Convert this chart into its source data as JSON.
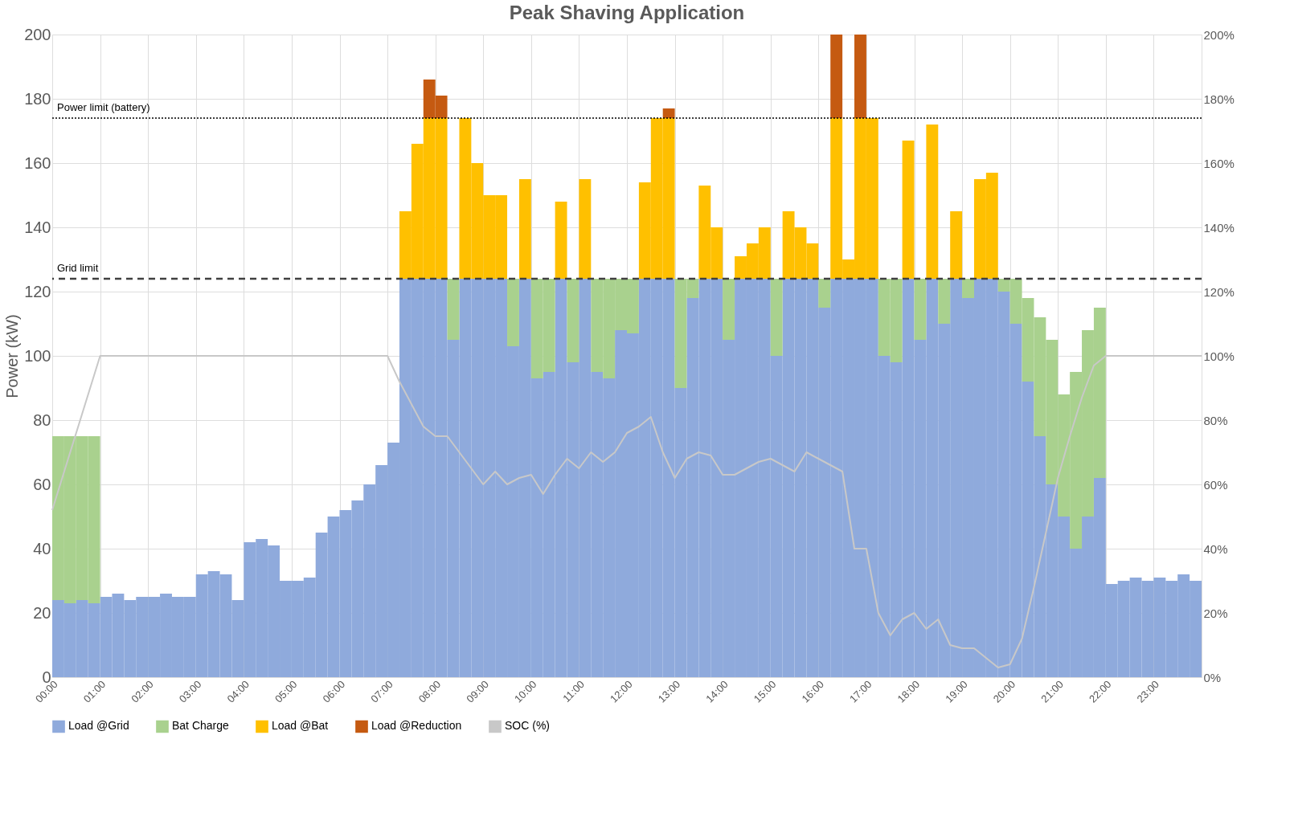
{
  "chart_data": {
    "type": "bar",
    "title": "Peak Shaving Application",
    "ylabel": "Power (kW)",
    "stacked": true,
    "grid": true,
    "legend": "bottom",
    "x": [
      0.125,
      0.375,
      0.625,
      0.875,
      1.125,
      1.375,
      1.625,
      1.875,
      2.125,
      2.375,
      2.625,
      2.875,
      3.125,
      3.375,
      3.625,
      3.875,
      4.125,
      4.375,
      4.625,
      4.875,
      5.125,
      5.375,
      5.625,
      5.875,
      6.125,
      6.375,
      6.625,
      6.875,
      7.125,
      7.375,
      7.625,
      7.875,
      8.125,
      8.375,
      8.625,
      8.875,
      9.125,
      9.375,
      9.625,
      9.875,
      10.125,
      10.375,
      10.625,
      10.875,
      11.125,
      11.375,
      11.625,
      11.875,
      12.125,
      12.375,
      12.625,
      12.875,
      13.125,
      13.375,
      13.625,
      13.875,
      14.125,
      14.375,
      14.625,
      14.875,
      15.125,
      15.375,
      15.625,
      15.875,
      16.125,
      16.375,
      16.625,
      16.875,
      17.125,
      17.375,
      17.625,
      17.875,
      18.125,
      18.375,
      18.625,
      18.875,
      19.125,
      19.375,
      19.625,
      19.875,
      20.125,
      20.375,
      20.625,
      20.875,
      21.125,
      21.375,
      21.625,
      21.875,
      22.125,
      22.375,
      22.625,
      22.875,
      23.125,
      23.375,
      23.625,
      23.875
    ],
    "xlim": [
      0,
      24
    ],
    "xticks": [
      {
        "value": 0,
        "label": "00:00"
      },
      {
        "value": 1,
        "label": "01:00"
      },
      {
        "value": 2,
        "label": "02:00"
      },
      {
        "value": 3,
        "label": "03:00"
      },
      {
        "value": 4,
        "label": "04:00"
      },
      {
        "value": 5,
        "label": "05:00"
      },
      {
        "value": 6,
        "label": "06:00"
      },
      {
        "value": 7,
        "label": "07:00"
      },
      {
        "value": 8,
        "label": "08:00"
      },
      {
        "value": 9,
        "label": "09:00"
      },
      {
        "value": 10,
        "label": "10:00"
      },
      {
        "value": 11,
        "label": "11:00"
      },
      {
        "value": 12,
        "label": "12:00"
      },
      {
        "value": 13,
        "label": "13:00"
      },
      {
        "value": 14,
        "label": "14:00"
      },
      {
        "value": 15,
        "label": "15:00"
      },
      {
        "value": 16,
        "label": "16:00"
      },
      {
        "value": 17,
        "label": "17:00"
      },
      {
        "value": 18,
        "label": "18:00"
      },
      {
        "value": 19,
        "label": "19:00"
      },
      {
        "value": 20,
        "label": "20:00"
      },
      {
        "value": 21,
        "label": "21:00"
      },
      {
        "value": 22,
        "label": "22:00"
      },
      {
        "value": 23,
        "label": "23:00"
      },
      {
        "value": 24,
        "label": null
      }
    ],
    "ylim": [
      0,
      200
    ],
    "yticks": [
      0,
      20,
      40,
      60,
      80,
      100,
      120,
      140,
      160,
      180,
      200
    ],
    "y2lim": [
      0,
      200
    ],
    "y2ticks": [
      {
        "value": 0,
        "label": "0%"
      },
      {
        "value": 20,
        "label": "20%"
      },
      {
        "value": 40,
        "label": "40%"
      },
      {
        "value": 60,
        "label": "60%"
      },
      {
        "value": 80,
        "label": "80%"
      },
      {
        "value": 100,
        "label": "100%"
      },
      {
        "value": 120,
        "label": "120%"
      },
      {
        "value": 140,
        "label": "140%"
      },
      {
        "value": 160,
        "label": "160%"
      },
      {
        "value": 180,
        "label": "180%"
      },
      {
        "value": 200,
        "label": "200%"
      }
    ],
    "series": [
      {
        "name": "Load @Grid",
        "color": "#8faadc",
        "values": [
          24,
          23,
          24,
          23,
          25,
          26,
          24,
          25,
          25,
          26,
          25,
          25,
          32,
          33,
          32,
          24,
          42,
          43,
          41,
          30,
          30,
          31,
          45,
          50,
          52,
          55,
          60,
          66,
          73,
          124,
          124,
          124,
          124,
          105,
          124,
          124,
          124,
          124,
          103,
          124,
          93,
          95,
          124,
          98,
          124,
          95,
          93,
          108,
          107,
          124,
          124,
          124,
          90,
          118,
          124,
          124,
          105,
          124,
          124,
          124,
          100,
          124,
          124,
          124,
          115,
          124,
          124,
          124,
          124,
          100,
          98,
          124,
          105,
          124,
          110,
          124,
          118,
          124,
          124,
          120,
          110,
          92,
          75,
          60,
          50,
          40,
          50,
          62,
          29,
          30,
          31,
          30,
          31,
          30,
          32,
          30
        ]
      },
      {
        "name": "Bat Charge",
        "color": "#a9d18e",
        "values": [
          51,
          52,
          51,
          52,
          null,
          null,
          null,
          null,
          null,
          null,
          null,
          null,
          null,
          null,
          null,
          null,
          null,
          null,
          null,
          null,
          null,
          null,
          null,
          null,
          null,
          null,
          null,
          null,
          null,
          null,
          null,
          null,
          null,
          19,
          null,
          null,
          null,
          null,
          21,
          null,
          31,
          29,
          null,
          26,
          null,
          29,
          31,
          16,
          17,
          null,
          null,
          null,
          34,
          6,
          null,
          null,
          19,
          null,
          null,
          null,
          24,
          null,
          null,
          null,
          9,
          null,
          null,
          null,
          null,
          24,
          26,
          null,
          19,
          null,
          14,
          null,
          6,
          null,
          null,
          4,
          14,
          26,
          37,
          45,
          38,
          55,
          58,
          53,
          null,
          null,
          null,
          null,
          null,
          null,
          null,
          null
        ]
      },
      {
        "name": "Load @Bat",
        "color": "#ffc000",
        "values": [
          null,
          null,
          null,
          null,
          null,
          null,
          null,
          null,
          null,
          null,
          null,
          null,
          null,
          null,
          null,
          null,
          null,
          null,
          null,
          null,
          null,
          null,
          null,
          null,
          null,
          null,
          null,
          null,
          null,
          21,
          42,
          50,
          50,
          null,
          50,
          36,
          26,
          26,
          null,
          31,
          null,
          null,
          24,
          null,
          31,
          null,
          null,
          null,
          null,
          30,
          50,
          50,
          null,
          null,
          29,
          16,
          null,
          7,
          11,
          16,
          null,
          21,
          16,
          11,
          null,
          50,
          6,
          50,
          50,
          null,
          null,
          43,
          null,
          48,
          null,
          21,
          null,
          31,
          33,
          null,
          null,
          null,
          null,
          null,
          null,
          null,
          null,
          null,
          null,
          null,
          null,
          null,
          null,
          null,
          null,
          null
        ]
      },
      {
        "name": "Load @Reduction",
        "color": "#c55a11",
        "values": [
          null,
          null,
          null,
          null,
          null,
          null,
          null,
          null,
          null,
          null,
          null,
          null,
          null,
          null,
          null,
          null,
          null,
          null,
          null,
          null,
          null,
          null,
          null,
          null,
          null,
          null,
          null,
          null,
          null,
          null,
          null,
          12,
          7,
          null,
          null,
          null,
          null,
          null,
          null,
          null,
          null,
          null,
          null,
          null,
          null,
          null,
          null,
          null,
          null,
          null,
          null,
          3,
          null,
          null,
          null,
          null,
          null,
          null,
          null,
          null,
          null,
          null,
          null,
          null,
          null,
          26,
          null,
          26,
          null,
          null,
          null,
          null,
          null,
          null,
          null,
          null,
          null,
          null,
          null,
          null,
          null,
          null,
          null,
          null,
          null,
          null,
          null,
          null,
          null,
          null,
          null,
          null,
          null,
          null,
          null,
          null
        ]
      },
      {
        "name": "SOC (%)",
        "type": "line",
        "axis": "y2",
        "color": "#c8c8c8",
        "marker": "none",
        "x": [
          0,
          1,
          7,
          7.25,
          7.5,
          7.75,
          8,
          8.25,
          8.5,
          8.75,
          9,
          9.25,
          9.5,
          9.75,
          10,
          10.25,
          10.5,
          10.75,
          11,
          11.25,
          11.5,
          11.75,
          12,
          12.25,
          12.5,
          12.75,
          13,
          13.25,
          13.5,
          13.75,
          14,
          14.25,
          14.5,
          14.75,
          15,
          15.25,
          15.5,
          15.75,
          16,
          16.25,
          16.5,
          16.75,
          17,
          17.25,
          17.5,
          17.75,
          18,
          18.25,
          18.5,
          18.75,
          19,
          19.25,
          19.5,
          19.75,
          20,
          20.25,
          20.5,
          20.75,
          21,
          21.25,
          21.5,
          21.75,
          22,
          24
        ],
        "values": [
          52,
          100,
          100,
          92,
          85,
          78,
          75,
          75,
          70,
          65,
          60,
          64,
          60,
          62,
          63,
          57,
          63,
          68,
          65,
          70,
          67,
          70,
          76,
          78,
          81,
          70,
          62,
          68,
          70,
          69,
          63,
          63,
          65,
          67,
          68,
          66,
          64,
          70,
          68,
          66,
          64,
          40,
          40,
          20,
          13,
          18,
          20,
          15,
          18,
          10,
          9,
          9,
          6,
          3,
          4,
          12,
          28,
          45,
          62,
          75,
          87,
          97,
          100,
          100
        ]
      }
    ],
    "ref_lines": [
      {
        "axis": "y",
        "value": 174,
        "label": "Power limit (battery)",
        "color": "#000000",
        "line_style": "dotted"
      },
      {
        "axis": "y",
        "value": 124,
        "label": "Grid limit",
        "color": "#404040",
        "line_style": "dashed"
      }
    ]
  }
}
